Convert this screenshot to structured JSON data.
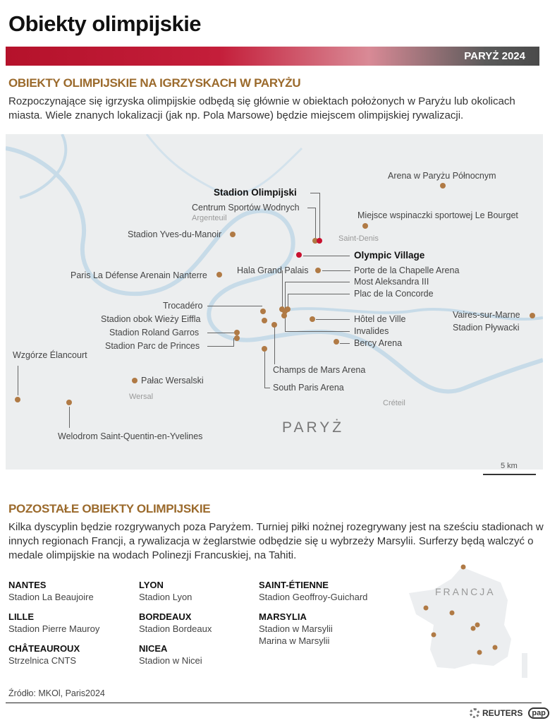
{
  "title": "Obiekty olimpijskie",
  "banner": {
    "label": "PARYŻ 2024",
    "color": "#c41e3a"
  },
  "paris_section": {
    "heading": "OBIEKTY OLIMPIJSKIE NA IGRZYSKACH W PARYŻU",
    "text": "Rozpoczynające się igrzyska olimpijskie odbędą się głównie w obiektach położonych w Paryżu lub okolicach miasta. Wiele znanych lokalizacji (jak np. Pola Marsowe) będzie miejscem olimpijskiej rywalizacji."
  },
  "map": {
    "city_label": "PARYŻ",
    "scale_label": "5 km",
    "places": [
      "Saint-Denis",
      "Argenteuil",
      "Wersal",
      "Créteil"
    ],
    "venues": [
      "Arena w Paryżu Północnym",
      "Stadion Olimpijski",
      "Centrum Sportów Wodnych",
      "Miejsce wspinaczki sportowej Le Bourget",
      "Stadion Yves-du-Manoir",
      "Olympic Village",
      "Hala Grand Palais",
      "Porte de la Chapelle Arena",
      "Paris La Défense Arenain Nanterre",
      "Most Aleksandra III",
      "Plac de la Concorde",
      "Trocadéro",
      "Stadion obok Wieży Eiffla",
      "Hôtel de Ville",
      "Invalides",
      "Vaires-sur-Marne",
      "Stadion Pływacki",
      "Stadion Roland Garros",
      "Stadion Parc de Princes",
      "Bercy Arena",
      "Wzgórze Élancourt",
      "Champs de Mars Arena",
      "Pałac Wersalski",
      "South Paris Arena",
      "Welodrom Saint-Quentin-en-Yvelines"
    ],
    "marker_color": "#b07a45",
    "highlight_color": "#c8102e"
  },
  "other_section": {
    "heading": "POZOSTAŁE OBIEKTY OLIMPIJSKIE",
    "text": "Kilka dyscyplin będzie rozgrywanych poza Paryżem. Turniej piłki nożnej rozegrywany jest na sześciu stadionach w innych regionach Francji, a rywalizacja w żeglarstwie odbędzie się u wybrzeży Marsylii. Surferzy będą walczyć o medale olimpijskie na wodach Polinezji Francuskiej, na Tahiti.",
    "cities": [
      {
        "name": "NANTES",
        "venues": [
          "Stadion La Beaujoire"
        ]
      },
      {
        "name": "LILLE",
        "venues": [
          "Stadion Pierre Mauroy"
        ]
      },
      {
        "name": "CHÂTEAUROUX",
        "venues": [
          "Strzelnica CNTS"
        ]
      },
      {
        "name": "LYON",
        "venues": [
          "Stadion Lyon"
        ]
      },
      {
        "name": "BORDEAUX",
        "venues": [
          "Stadion Bordeaux"
        ]
      },
      {
        "name": "NICEA",
        "venues": [
          "Stadion w Nicei"
        ]
      },
      {
        "name": "SAINT-ÉTIENNE",
        "venues": [
          "Stadion Geoffroy-Guichard"
        ]
      },
      {
        "name": "MARSYLIA",
        "venues": [
          "Stadion w Marsylii",
          "Marina w Marsylii"
        ]
      }
    ],
    "france_label": "FRANCJA"
  },
  "source": "Źródło: MKOl, Paris2024",
  "logos": [
    "REUTERS",
    "pap"
  ]
}
